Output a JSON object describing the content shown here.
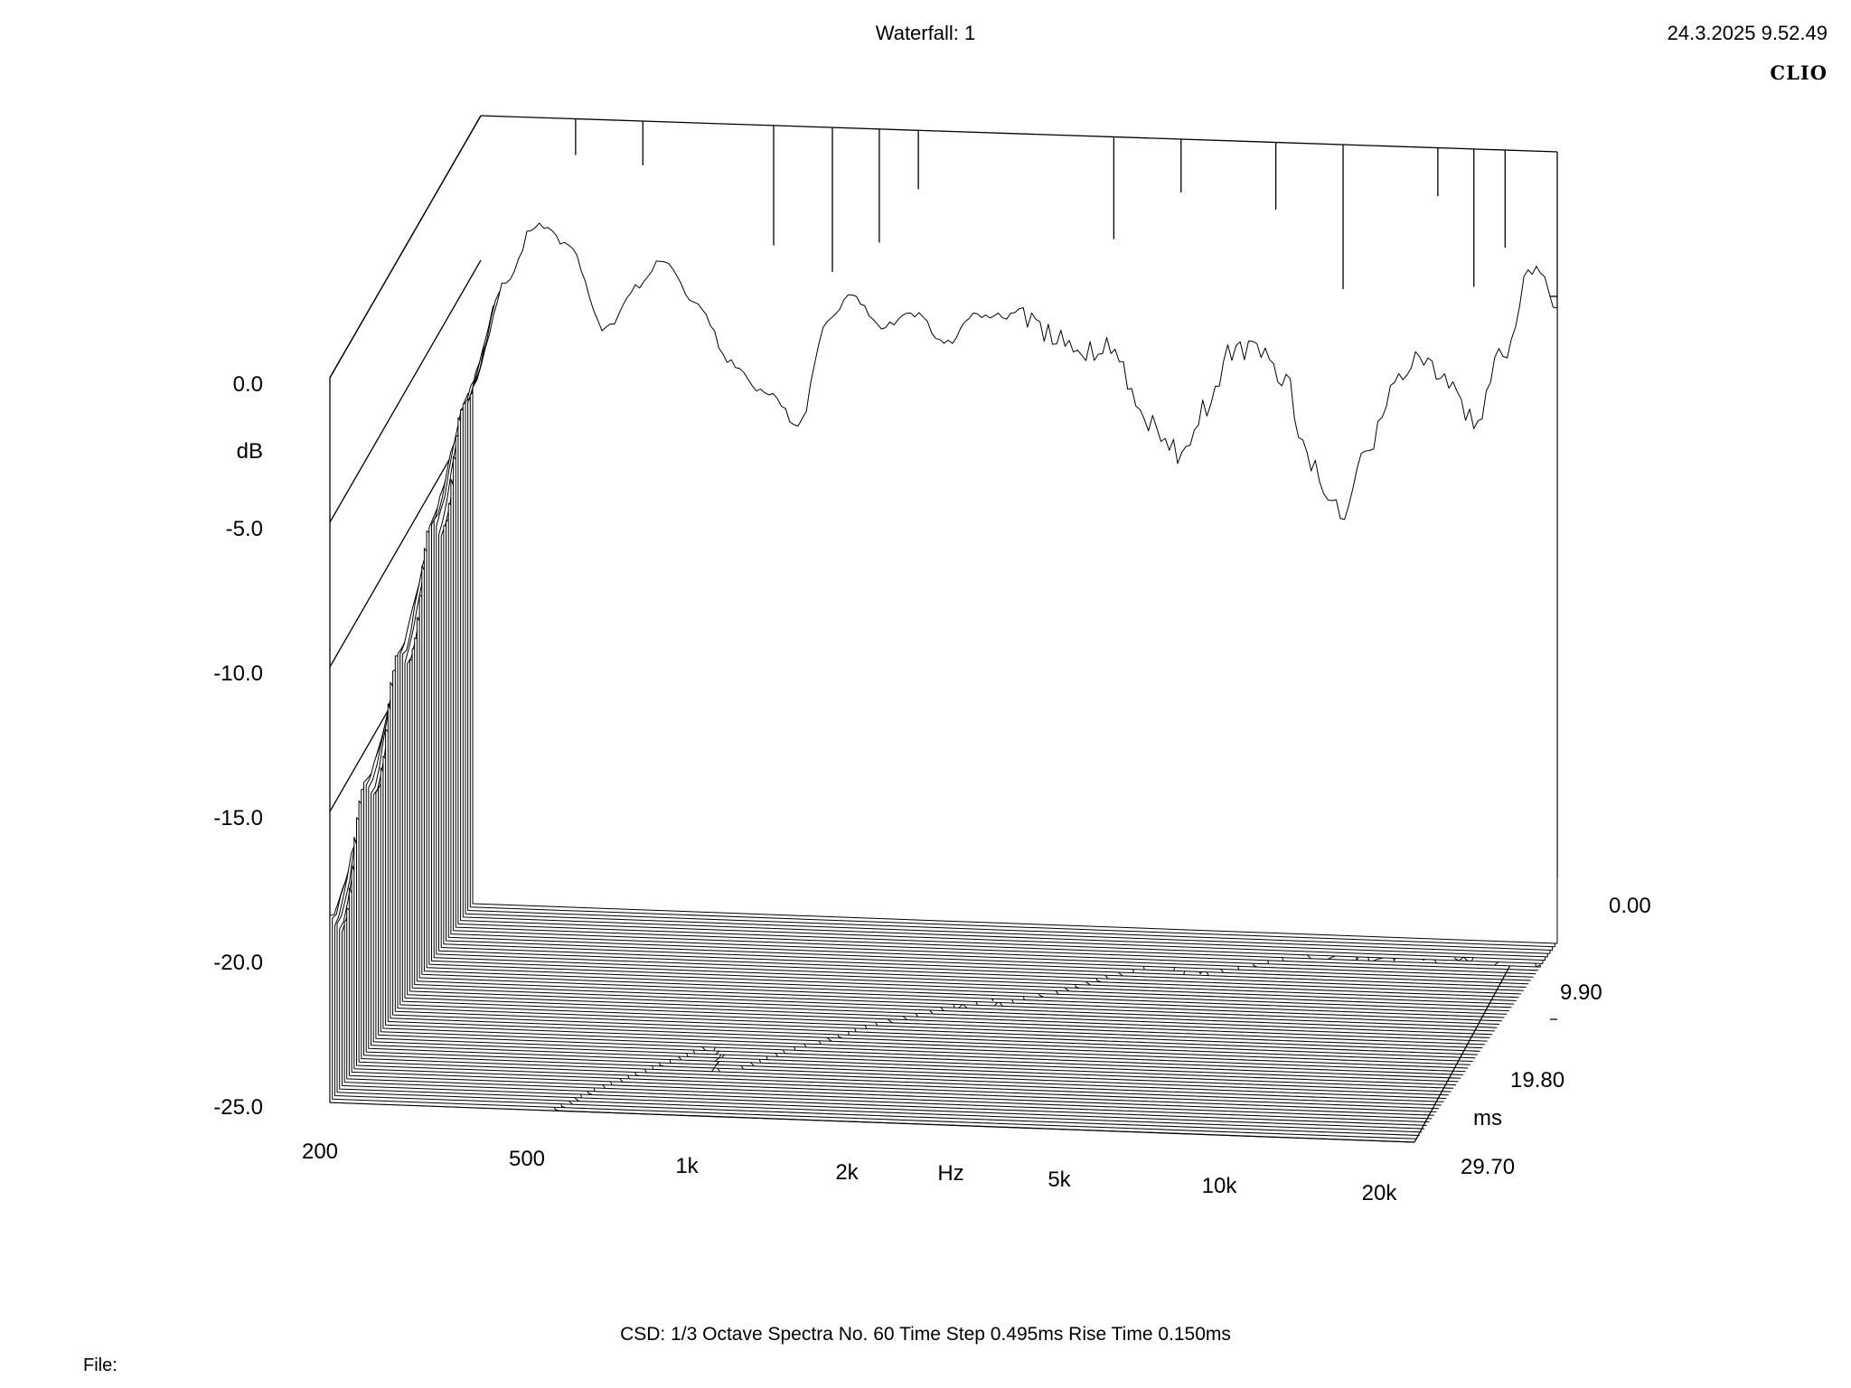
{
  "header": {
    "title": "Waterfall: 1",
    "timestamp": "24.3.2025 9.52.49",
    "brand": "CLIO"
  },
  "footer": {
    "info": "CSD:   1/3 Octave   Spectra No. 60   Time Step 0.495ms   Rise Time 0.150ms",
    "file_label": "File:"
  },
  "colors": {
    "background": "#ffffff",
    "line": "#000000"
  },
  "chart_data": {
    "type": "waterfall",
    "title": "Waterfall: 1",
    "xlabel": "Hz",
    "ylabel": "dB",
    "zlabel": "ms",
    "x_scale": "log",
    "xlim": [
      200,
      20000
    ],
    "ylim": [
      -25,
      0
    ],
    "zlim": [
      0,
      29.7
    ],
    "x_ticks": [
      "200",
      "500",
      "1k",
      "2k",
      "5k",
      "10k",
      "20k"
    ],
    "y_ticks": [
      "0.0",
      "-5.0",
      "-10.0",
      "-15.0",
      "-20.0",
      "-25.0"
    ],
    "z_ticks": [
      "0.00",
      "9.90",
      "19.80",
      "29.70"
    ],
    "spectra_count": 60,
    "time_step_ms": 0.495,
    "rise_time_ms": 0.15,
    "smoothing": "1/3 Octave",
    "initial_spectrum": {
      "freq_hz": [
        200,
        230,
        260,
        300,
        350,
        400,
        450,
        520,
        600,
        700,
        800,
        900,
        1000,
        1150,
        1300,
        1500,
        1700,
        2000,
        2300,
        2600,
        3000,
        3500,
        4000,
        4500,
        5000,
        5600,
        6300,
        7100,
        8000,
        9000,
        10000,
        11200,
        12500,
        14000,
        16000,
        18000,
        20000
      ],
      "db": [
        -7.0,
        -3.5,
        -1.5,
        -2.0,
        -5.0,
        -3.5,
        -2.5,
        -4.0,
        -6.0,
        -7.0,
        -8.0,
        -4.5,
        -3.5,
        -4.5,
        -4.0,
        -5.0,
        -4.0,
        -4.0,
        -4.5,
        -5.0,
        -5.0,
        -7.5,
        -8.5,
        -7.0,
        -5.0,
        -5.0,
        -6.0,
        -9.0,
        -10.5,
        -8.0,
        -6.0,
        -5.0,
        -5.5,
        -7.0,
        -4.5,
        -1.5,
        -3.0
      ]
    },
    "late_peaks": [
      {
        "freq_hz": 280,
        "db": -14.0
      },
      {
        "freq_hz": 500,
        "db": -16.0
      },
      {
        "freq_hz": 1100,
        "db": -17.0
      },
      {
        "freq_hz": 2300,
        "db": -18.5
      },
      {
        "freq_hz": 5000,
        "db": -20.0
      }
    ]
  }
}
